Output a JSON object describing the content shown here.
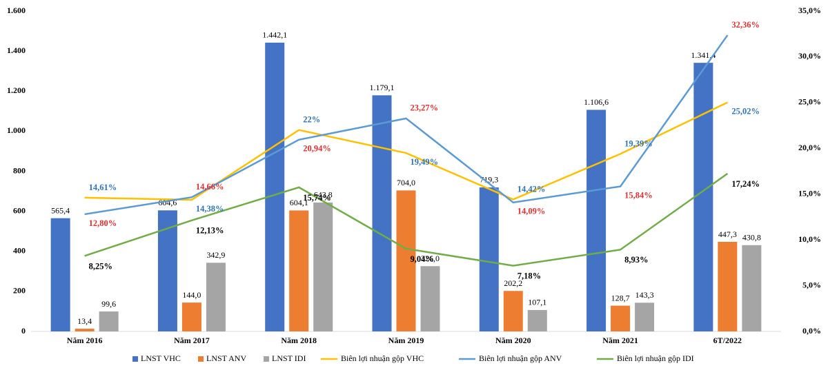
{
  "chart_data": {
    "type": "bar_line",
    "categories": [
      "Năm 2016",
      "Năm 2017",
      "Năm 2018",
      "Năm 2019",
      "Năm 2020",
      "Năm 2021",
      "6T/2022"
    ],
    "ylim": [
      0,
      1600
    ],
    "yticks": [
      0,
      200,
      400,
      600,
      800,
      {
        "value": 1000,
        "label": "1.000"
      },
      {
        "value": 1200,
        "label": "1.200"
      },
      {
        "value": 1400,
        "label": "1.400"
      },
      {
        "value": 1600,
        "label": "1.600"
      }
    ],
    "y2lim": [
      0,
      35
    ],
    "y2ticks": [
      {
        "value": 0,
        "label": "0,0%"
      },
      {
        "value": 5,
        "label": "5,0%"
      },
      {
        "value": 10,
        "label": "10,0%"
      },
      {
        "value": 15,
        "label": "15,0%"
      },
      {
        "value": 20,
        "label": "20,0%"
      },
      {
        "value": 25,
        "label": "25,0%"
      },
      {
        "value": 30,
        "label": "30,0%"
      },
      {
        "value": 35,
        "label": "35,0%"
      }
    ],
    "series": [
      {
        "name": "LNST VHC",
        "type": "bar",
        "color": "#4472c4",
        "values": [
          565.4,
          604.6,
          1442.1,
          1179.1,
          719.3,
          1106.6,
          1341.4
        ],
        "value_labels": [
          "565,4",
          "604,6",
          "1.442,1",
          "1.179,1",
          "719,3",
          "1.106,6",
          "1.341,4"
        ]
      },
      {
        "name": "LNST ANV",
        "type": "bar",
        "color": "#ed7d31",
        "values": [
          13.4,
          144.0,
          604.1,
          704.0,
          202.2,
          128.7,
          447.3
        ],
        "value_labels": [
          "13,4",
          "144,0",
          "604,1",
          "704,0",
          "202,2",
          "128,7",
          "447,3"
        ]
      },
      {
        "name": "LNST IDI",
        "type": "bar",
        "color": "#a5a5a5",
        "values": [
          99.6,
          342.9,
          643.8,
          326.0,
          107.1,
          143.3,
          430.8
        ],
        "value_labels": [
          "99,6",
          "342,9",
          "643,8",
          "326,0",
          "107,1",
          "143,3",
          "430,8"
        ]
      },
      {
        "name": "Biên lợi nhuận gộp VHC",
        "type": "line",
        "axis": "y2",
        "color": "#ffc000",
        "label_color": "#2e75b6",
        "values": [
          14.61,
          14.38,
          22,
          19.49,
          14.42,
          19.39,
          25.02
        ],
        "value_labels": [
          "14,61%",
          "14,38%",
          "22%",
          "19,49%",
          "14,42%",
          "19,39%",
          "25,02%"
        ]
      },
      {
        "name": "Biên lợi nhuận gộp ANV",
        "type": "line",
        "axis": "y2",
        "color": "#5b9bd5",
        "label_color": "#e03030",
        "values": [
          12.8,
          14.66,
          20.94,
          23.27,
          14.09,
          15.84,
          32.36
        ],
        "value_labels": [
          "12,80%",
          "14,66%",
          "20,94%",
          "23,27%",
          "14,09%",
          "15,84%",
          "32,36%"
        ]
      },
      {
        "name": "Biên lợi nhuận gộp IDI",
        "type": "line",
        "axis": "y2",
        "color": "#70ad47",
        "label_color": "#000000",
        "values": [
          8.25,
          12.13,
          15.74,
          9.04,
          7.18,
          8.93,
          17.24
        ],
        "value_labels": [
          "8,25%",
          "12,13%",
          "15,74%",
          "9,04%",
          "7,18%",
          "8,93%",
          "17,24%"
        ]
      }
    ]
  }
}
